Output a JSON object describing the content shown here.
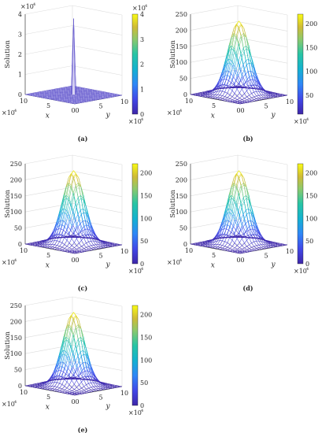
{
  "figure": {
    "panels": [
      {
        "caption": "(a)",
        "ylabel": "Solution",
        "xlabel": "x",
        "ylabel2": "y",
        "z_ticks": [
          "0",
          "1",
          "2",
          "3",
          "4"
        ],
        "z_exponent": "4",
        "x_ticks": [
          "10",
          "5",
          "0"
        ],
        "y_ticks": [
          "0",
          "5",
          "10"
        ],
        "axis_exponent": "4",
        "colorbar_ticks": [
          "0",
          "1",
          "2",
          "3",
          "4"
        ],
        "colorbar_exponent": "4"
      },
      {
        "caption": "(b)",
        "ylabel": "Solution",
        "xlabel": "x",
        "ylabel2": "y",
        "z_ticks": [
          "0",
          "50",
          "100",
          "150",
          "200",
          "250"
        ],
        "x_ticks": [
          "10",
          "5",
          "0"
        ],
        "y_ticks": [
          "0",
          "5",
          "10"
        ],
        "axis_exponent": "4",
        "colorbar_ticks": [
          "50",
          "100",
          "150",
          "200"
        ]
      },
      {
        "caption": "(c)",
        "ylabel": "Solution",
        "xlabel": "x",
        "ylabel2": "y",
        "z_ticks": [
          "0",
          "50",
          "100",
          "150",
          "200",
          "250"
        ],
        "x_ticks": [
          "10",
          "5",
          "0"
        ],
        "y_ticks": [
          "0",
          "5",
          "10"
        ],
        "axis_exponent": "4",
        "colorbar_ticks": [
          "0",
          "50",
          "100",
          "150",
          "200"
        ]
      },
      {
        "caption": "(d)",
        "ylabel": "Solution",
        "xlabel": "x",
        "ylabel2": "y",
        "z_ticks": [
          "0",
          "50",
          "100",
          "150",
          "200",
          "250"
        ],
        "x_ticks": [
          "10",
          "5",
          "0"
        ],
        "y_ticks": [
          "0",
          "5",
          "10"
        ],
        "axis_exponent": "4",
        "colorbar_ticks": [
          "0",
          "50",
          "100",
          "150",
          "200"
        ]
      },
      {
        "caption": "(e)",
        "ylabel": "Solution",
        "xlabel": "x",
        "ylabel2": "y",
        "z_ticks": [
          "0",
          "50",
          "100",
          "150",
          "200",
          "250"
        ],
        "x_ticks": [
          "10",
          "5",
          "0"
        ],
        "y_ticks": [
          "0",
          "5",
          "10"
        ],
        "axis_exponent": "4",
        "colorbar_ticks": [
          "0",
          "50",
          "100",
          "150",
          "200"
        ]
      }
    ]
  },
  "chart_data": [
    {
      "type": "surface",
      "panel": "(a)",
      "shape": "sharp spike at center",
      "xlim": [
        0,
        100000
      ],
      "ylim": [
        0,
        100000
      ],
      "zlim": [
        0,
        40000
      ],
      "peak_z": 38000,
      "colorbar_range": [
        0,
        40000
      ],
      "colormap": "parula",
      "colors": [
        "#3e26a8",
        "#2e87f7",
        "#28c5a5",
        "#cfbb36",
        "#f9fb15"
      ]
    },
    {
      "type": "surface",
      "panel": "(b)",
      "shape": "smooth Gaussian bump",
      "xlim": [
        0,
        100000
      ],
      "ylim": [
        0,
        100000
      ],
      "zlim": [
        0,
        250
      ],
      "peak_z": 230,
      "colorbar_range": [
        10,
        220
      ],
      "colormap": "parula"
    },
    {
      "type": "surface",
      "panel": "(c)",
      "shape": "smooth Gaussian bump",
      "xlim": [
        0,
        100000
      ],
      "ylim": [
        0,
        100000
      ],
      "zlim": [
        0,
        250
      ],
      "peak_z": 230,
      "colorbar_range": [
        0,
        220
      ],
      "colormap": "parula"
    },
    {
      "type": "surface",
      "panel": "(d)",
      "shape": "smooth Gaussian bump",
      "xlim": [
        0,
        100000
      ],
      "ylim": [
        0,
        100000
      ],
      "zlim": [
        0,
        250
      ],
      "peak_z": 230,
      "colorbar_range": [
        0,
        220
      ],
      "colormap": "parula"
    },
    {
      "type": "surface",
      "panel": "(e)",
      "shape": "smooth Gaussian bump",
      "xlim": [
        0,
        100000
      ],
      "ylim": [
        0,
        100000
      ],
      "zlim": [
        0,
        250
      ],
      "peak_z": 230,
      "colorbar_range": [
        0,
        220
      ],
      "colormap": "parula"
    }
  ]
}
